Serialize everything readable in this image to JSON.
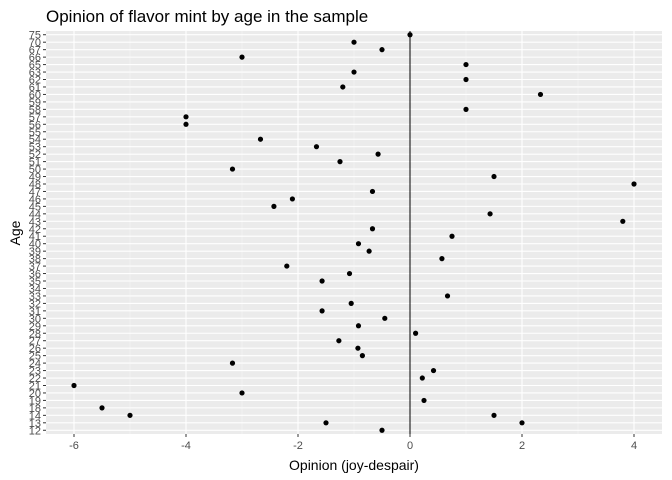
{
  "chart_data": {
    "type": "scatter",
    "title": "Opinion of flavor mint by age in the sample",
    "xlabel": "Opinion (joy-despair)",
    "ylabel": "Age",
    "xlim": [
      -6.5,
      4.5
    ],
    "xticks": [
      -6,
      -4,
      -2,
      0,
      2,
      4
    ],
    "yticks": [
      12,
      13,
      14,
      18,
      19,
      20,
      21,
      22,
      23,
      24,
      25,
      26,
      27,
      28,
      29,
      30,
      31,
      32,
      33,
      34,
      35,
      36,
      37,
      38,
      39,
      40,
      41,
      42,
      43,
      44,
      45,
      46,
      47,
      48,
      49,
      50,
      51,
      52,
      53,
      54,
      55,
      56,
      57,
      58,
      59,
      60,
      61,
      62,
      63,
      65,
      66,
      67,
      70,
      75
    ],
    "reference_line_x": 0,
    "grid": true,
    "point_color": "#000000",
    "panel_color": "#ebebeb",
    "points": [
      {
        "age": 75,
        "x": 0.0
      },
      {
        "age": 70,
        "x": -1.0
      },
      {
        "age": 67,
        "x": -0.5
      },
      {
        "age": 66,
        "x": -3.0
      },
      {
        "age": 65,
        "x": 1.0
      },
      {
        "age": 63,
        "x": -1.0
      },
      {
        "age": 62,
        "x": 1.0
      },
      {
        "age": 61,
        "x": -1.2
      },
      {
        "age": 60,
        "x": 2.33
      },
      {
        "age": 58,
        "x": 1.0
      },
      {
        "age": 57,
        "x": -4.0
      },
      {
        "age": 56,
        "x": -4.0
      },
      {
        "age": 54,
        "x": -2.67
      },
      {
        "age": 53,
        "x": -1.67
      },
      {
        "age": 52,
        "x": -0.57
      },
      {
        "age": 51,
        "x": -1.25
      },
      {
        "age": 50,
        "x": -3.17
      },
      {
        "age": 49,
        "x": 1.5
      },
      {
        "age": 48,
        "x": 4.0
      },
      {
        "age": 47,
        "x": -0.67
      },
      {
        "age": 46,
        "x": -2.1
      },
      {
        "age": 45,
        "x": -2.43
      },
      {
        "age": 44,
        "x": 1.43
      },
      {
        "age": 43,
        "x": 3.8
      },
      {
        "age": 42,
        "x": -0.67
      },
      {
        "age": 41,
        "x": 0.75
      },
      {
        "age": 40,
        "x": -0.92
      },
      {
        "age": 39,
        "x": -0.73
      },
      {
        "age": 38,
        "x": 0.57
      },
      {
        "age": 37,
        "x": -2.2
      },
      {
        "age": 36,
        "x": -1.08
      },
      {
        "age": 35,
        "x": -1.57
      },
      {
        "age": 33,
        "x": 0.67
      },
      {
        "age": 32,
        "x": -1.05
      },
      {
        "age": 31,
        "x": -1.57
      },
      {
        "age": 30,
        "x": -0.45
      },
      {
        "age": 29,
        "x": -0.92
      },
      {
        "age": 28,
        "x": 0.1
      },
      {
        "age": 27,
        "x": -1.27
      },
      {
        "age": 26,
        "x": -0.93
      },
      {
        "age": 25,
        "x": -0.85
      },
      {
        "age": 24,
        "x": -3.17
      },
      {
        "age": 23,
        "x": 0.42
      },
      {
        "age": 22,
        "x": 0.22
      },
      {
        "age": 21,
        "x": -6.0
      },
      {
        "age": 20,
        "x": -3.0
      },
      {
        "age": 19,
        "x": 0.25
      },
      {
        "age": 18,
        "x": -5.5
      },
      {
        "age": 14,
        "x": -5.0
      },
      {
        "age": 14,
        "x": 1.5
      },
      {
        "age": 13,
        "x": -1.5
      },
      {
        "age": 13,
        "x": 2.0
      },
      {
        "age": 12,
        "x": -0.5
      }
    ]
  }
}
